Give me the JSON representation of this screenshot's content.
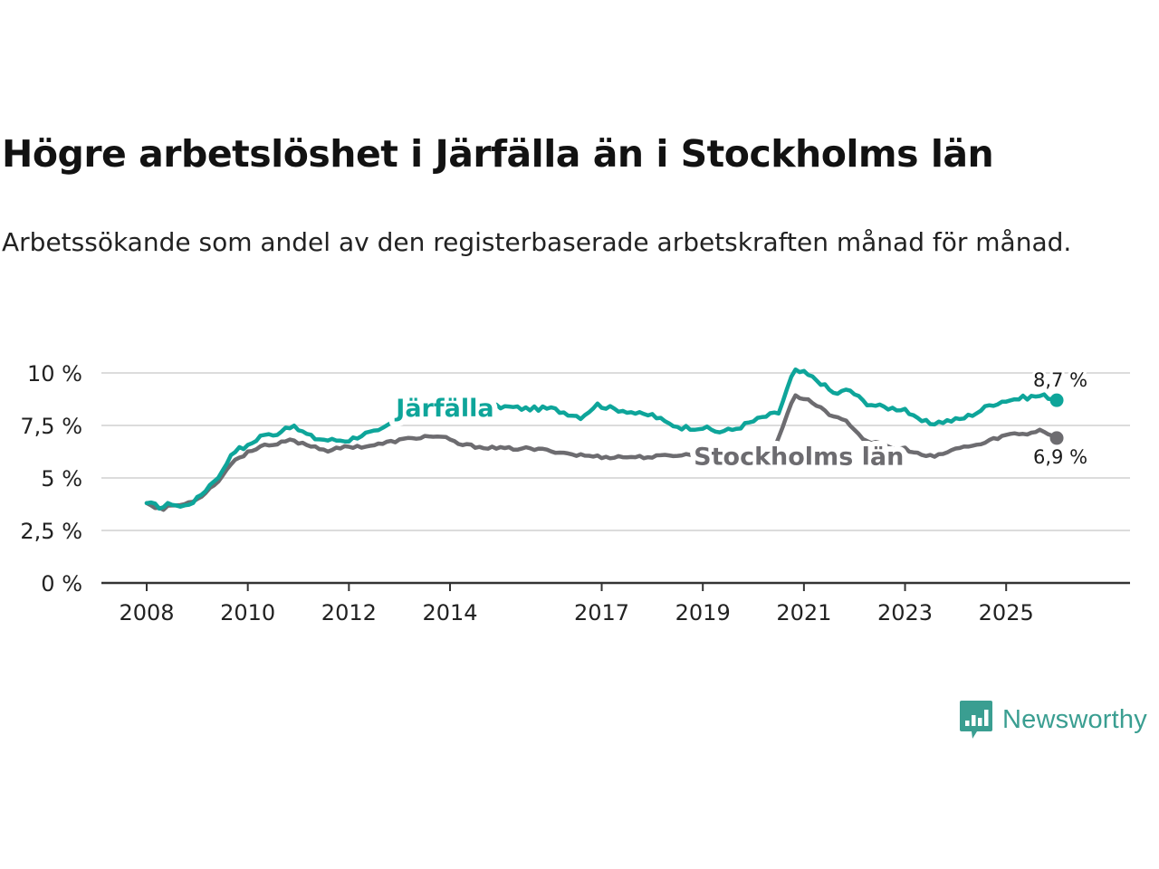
{
  "title": "Högre arbetslöshet i Järfälla än i Stockholms län",
  "subtitle": "Arbetssökande som andel av den registerbaserade arbetskraften månad för månad.",
  "brand": {
    "name": "Newsworthy",
    "logo_icon": "bar-chart-speech-bubble-icon",
    "color": "#3a9e91"
  },
  "chart_data": {
    "type": "line",
    "title": "Högre arbetslöshet i Järfälla än i Stockholms län",
    "xlabel": "",
    "ylabel": "",
    "x_start": "2008-01",
    "x_end": "2026-01",
    "xlim": [
      2008.0,
      2027.45
    ],
    "ylim": [
      0,
      10.5
    ],
    "yticks": [
      0,
      2.5,
      5,
      7.5,
      10
    ],
    "ytick_labels": [
      "0 %",
      "2,5 %",
      "5 %",
      "7,5 %",
      "10 %"
    ],
    "xticks": [
      2008,
      2010,
      2012,
      2014,
      2017,
      2019,
      2021,
      2023,
      2025
    ],
    "xtick_labels": [
      "2008",
      "2010",
      "2012",
      "2014",
      "2017",
      "2019",
      "2021",
      "2023",
      "2025"
    ],
    "grid": true,
    "series": [
      {
        "name": "Järfälla",
        "color": "#0ea59a",
        "label_at": 2013.9,
        "label_value": 8.4,
        "end_label": "8,7 %",
        "end_value": 8.7,
        "anchors": [
          [
            2008.0,
            3.8
          ],
          [
            2008.3,
            3.6
          ],
          [
            2008.5,
            3.8
          ],
          [
            2008.7,
            3.6
          ],
          [
            2009.0,
            4.0
          ],
          [
            2009.3,
            4.8
          ],
          [
            2009.5,
            5.3
          ],
          [
            2009.7,
            6.3
          ],
          [
            2010.0,
            6.5
          ],
          [
            2010.3,
            7.1
          ],
          [
            2010.5,
            7.0
          ],
          [
            2010.8,
            7.5
          ],
          [
            2011.0,
            7.3
          ],
          [
            2011.3,
            6.9
          ],
          [
            2011.6,
            6.8
          ],
          [
            2012.0,
            6.8
          ],
          [
            2012.3,
            7.1
          ],
          [
            2012.6,
            7.2
          ],
          [
            2013.0,
            7.9
          ],
          [
            2013.3,
            8.2
          ],
          [
            2013.6,
            8.4
          ],
          [
            2014.0,
            8.4
          ],
          [
            2014.5,
            8.3
          ],
          [
            2015.0,
            8.4
          ],
          [
            2015.5,
            8.3
          ],
          [
            2016.0,
            8.3
          ],
          [
            2016.3,
            8.1
          ],
          [
            2016.6,
            7.9
          ],
          [
            2016.9,
            8.5
          ],
          [
            2017.2,
            8.3
          ],
          [
            2017.5,
            8.2
          ],
          [
            2017.8,
            8.0
          ],
          [
            2018.0,
            8.0
          ],
          [
            2018.3,
            7.6
          ],
          [
            2018.6,
            7.4
          ],
          [
            2019.0,
            7.4
          ],
          [
            2019.3,
            7.2
          ],
          [
            2019.6,
            7.3
          ],
          [
            2019.9,
            7.6
          ],
          [
            2020.2,
            7.9
          ],
          [
            2020.5,
            8.1
          ],
          [
            2020.8,
            10.1
          ],
          [
            2021.0,
            10.0
          ],
          [
            2021.3,
            9.6
          ],
          [
            2021.6,
            9.0
          ],
          [
            2021.9,
            9.2
          ],
          [
            2022.2,
            8.6
          ],
          [
            2022.5,
            8.4
          ],
          [
            2022.8,
            8.3
          ],
          [
            2023.0,
            8.3
          ],
          [
            2023.2,
            7.8
          ],
          [
            2023.5,
            7.6
          ],
          [
            2023.8,
            7.7
          ],
          [
            2024.1,
            7.8
          ],
          [
            2024.4,
            8.1
          ],
          [
            2024.7,
            8.5
          ],
          [
            2025.0,
            8.7
          ],
          [
            2025.3,
            8.8
          ],
          [
            2025.6,
            8.9
          ],
          [
            2025.8,
            8.9
          ],
          [
            2026.0,
            8.7
          ]
        ]
      },
      {
        "name": "Stockholms län",
        "color": "#6d6c70",
        "label_at": 2020.9,
        "label_value": 6.1,
        "end_label": "6,9 %",
        "end_value": 6.9,
        "anchors": [
          [
            2008.0,
            3.8
          ],
          [
            2008.3,
            3.5
          ],
          [
            2008.5,
            3.7
          ],
          [
            2008.7,
            3.7
          ],
          [
            2009.0,
            4.0
          ],
          [
            2009.3,
            4.6
          ],
          [
            2009.5,
            5.1
          ],
          [
            2009.7,
            5.8
          ],
          [
            2010.0,
            6.2
          ],
          [
            2010.3,
            6.6
          ],
          [
            2010.5,
            6.5
          ],
          [
            2010.8,
            6.8
          ],
          [
            2011.0,
            6.7
          ],
          [
            2011.3,
            6.5
          ],
          [
            2011.6,
            6.3
          ],
          [
            2012.0,
            6.5
          ],
          [
            2012.3,
            6.5
          ],
          [
            2012.6,
            6.6
          ],
          [
            2013.0,
            6.8
          ],
          [
            2013.3,
            6.9
          ],
          [
            2013.6,
            7.0
          ],
          [
            2013.9,
            6.9
          ],
          [
            2014.2,
            6.6
          ],
          [
            2014.5,
            6.5
          ],
          [
            2015.0,
            6.4
          ],
          [
            2015.5,
            6.4
          ],
          [
            2016.0,
            6.3
          ],
          [
            2016.5,
            6.1
          ],
          [
            2017.0,
            6.0
          ],
          [
            2017.5,
            6.0
          ],
          [
            2018.0,
            6.0
          ],
          [
            2018.5,
            6.1
          ],
          [
            2019.0,
            6.1
          ],
          [
            2019.5,
            6.1
          ],
          [
            2020.0,
            6.1
          ],
          [
            2020.4,
            6.3
          ],
          [
            2020.8,
            8.9
          ],
          [
            2021.0,
            8.8
          ],
          [
            2021.3,
            8.4
          ],
          [
            2021.6,
            7.9
          ],
          [
            2021.9,
            7.6
          ],
          [
            2022.2,
            6.8
          ],
          [
            2022.5,
            6.6
          ],
          [
            2022.8,
            6.4
          ],
          [
            2023.0,
            6.4
          ],
          [
            2023.3,
            6.1
          ],
          [
            2023.6,
            6.0
          ],
          [
            2023.9,
            6.3
          ],
          [
            2024.2,
            6.5
          ],
          [
            2024.5,
            6.6
          ],
          [
            2024.8,
            6.9
          ],
          [
            2025.1,
            7.1
          ],
          [
            2025.4,
            7.1
          ],
          [
            2025.7,
            7.3
          ],
          [
            2026.0,
            6.9
          ]
        ]
      }
    ]
  }
}
